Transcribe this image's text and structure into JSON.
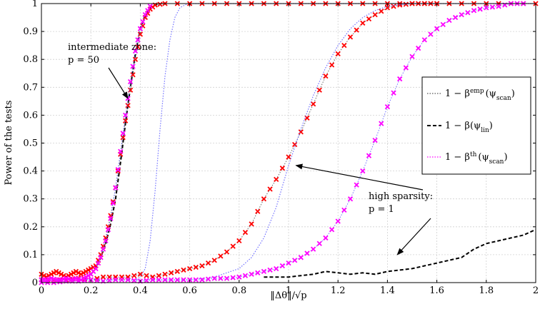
{
  "chart_data": {
    "type": "line",
    "xlabel": "‖Δθ‖/√p",
    "ylabel": "Power of the tests",
    "xlim": [
      0,
      2
    ],
    "ylim": [
      0,
      1
    ],
    "grid": true,
    "x_ticks": [
      "0",
      "0.2",
      "0.4",
      "0.6",
      "0.8",
      "1",
      "1.2",
      "1.4",
      "1.6",
      "1.8",
      "2"
    ],
    "y_ticks": [
      "0",
      "0.1",
      "0.2",
      "0.3",
      "0.4",
      "0.5",
      "0.6",
      "0.7",
      "0.8",
      "0.9",
      "1"
    ],
    "legend_position": "right",
    "legend": [
      {
        "label": "1 − β",
        "sup": "emp",
        "arg": "(ψ",
        "sub": "scan",
        "close": ")",
        "style": "dotted-with-red-x",
        "color": "#555555"
      },
      {
        "label": "1 − β(ψ",
        "sup": "",
        "arg": "",
        "sub": "lin",
        "close": ")",
        "style": "dashed",
        "color": "#000000"
      },
      {
        "label": "1 − β",
        "sup": "th",
        "arg": "(ψ",
        "sub": "scan",
        "close": ")",
        "style": "dotted-with-magenta-x",
        "color": "#ff00ff"
      }
    ],
    "annotations": [
      {
        "lines": [
          "intermediate zone:",
          "p = 50"
        ],
        "arrow_to": [
          0.35,
          0.66
        ]
      },
      {
        "lines": [
          "high sparsity:",
          "p = 1"
        ],
        "arrow_to": [
          1.03,
          0.42
        ]
      },
      {
        "arrow_to": [
          1.44,
          0.1
        ]
      }
    ],
    "colors": {
      "red_x": "#ff0000",
      "magenta_x": "#ff00ff",
      "emp_line": "#666666",
      "th_line": "#7070ff",
      "lin_line": "#000000"
    },
    "series": [
      {
        "key": "th_p50",
        "style": "dotted",
        "color": "#7070ff",
        "x": [
          0,
          0.2,
          0.3,
          0.35,
          0.38,
          0.4,
          0.42,
          0.44,
          0.46,
          0.48,
          0.5,
          0.52,
          0.54,
          0.56,
          0.58,
          0.6,
          2.0
        ],
        "y": [
          0.01,
          0.01,
          0.01,
          0.01,
          0.01,
          0.02,
          0.05,
          0.15,
          0.33,
          0.55,
          0.74,
          0.87,
          0.95,
          0.985,
          0.995,
          1.0,
          1.0
        ]
      },
      {
        "key": "lin_p50",
        "style": "dashed",
        "color": "#000000",
        "x": [
          0.2,
          0.22,
          0.24,
          0.26,
          0.28,
          0.3,
          0.32,
          0.34,
          0.36,
          0.38,
          0.4,
          0.42,
          0.44,
          0.46,
          0.48
        ],
        "y": [
          0.03,
          0.05,
          0.09,
          0.14,
          0.21,
          0.3,
          0.43,
          0.57,
          0.7,
          0.82,
          0.91,
          0.96,
          0.985,
          0.995,
          1.0
        ]
      },
      {
        "key": "lin_p1",
        "style": "dashed",
        "color": "#000000",
        "x": [
          0.9,
          0.95,
          1.0,
          1.05,
          1.1,
          1.15,
          1.2,
          1.25,
          1.3,
          1.35,
          1.4,
          1.45,
          1.5,
          1.55,
          1.6,
          1.65,
          1.7,
          1.75,
          1.8,
          1.85,
          1.9,
          1.95,
          2.0
        ],
        "y": [
          0.02,
          0.02,
          0.02,
          0.025,
          0.03,
          0.04,
          0.035,
          0.03,
          0.035,
          0.03,
          0.04,
          0.045,
          0.05,
          0.06,
          0.07,
          0.08,
          0.09,
          0.12,
          0.14,
          0.15,
          0.16,
          0.17,
          0.19
        ]
      },
      {
        "key": "emp_p50",
        "style": "x-dotted",
        "color": "#ff0000",
        "line_color": "#666666",
        "x": [
          0.0,
          0.02,
          0.04,
          0.06,
          0.08,
          0.1,
          0.12,
          0.14,
          0.16,
          0.18,
          0.2,
          0.22,
          0.24,
          0.26,
          0.28,
          0.3,
          0.32,
          0.34,
          0.36,
          0.38,
          0.4,
          0.42,
          0.44,
          0.46,
          0.5,
          0.6,
          0.7,
          0.8,
          0.9,
          1.0,
          1.1,
          1.2,
          1.3,
          1.4,
          1.5,
          1.6,
          1.7,
          1.8,
          1.9,
          2.0
        ],
        "y": [
          0.03,
          0.02,
          0.03,
          0.04,
          0.03,
          0.02,
          0.03,
          0.04,
          0.03,
          0.04,
          0.05,
          0.06,
          0.1,
          0.16,
          0.24,
          0.34,
          0.46,
          0.58,
          0.69,
          0.8,
          0.89,
          0.95,
          0.98,
          0.995,
          1.0,
          1.0,
          1.0,
          1.0,
          1.0,
          1.0,
          1.0,
          1.0,
          1.0,
          1.0,
          1.0,
          1.0,
          1.0,
          1.0,
          1.0,
          1.0
        ]
      },
      {
        "key": "emp_p1",
        "style": "x-dotted",
        "color": "#ff0000",
        "line_color": "#666666",
        "x": [
          0.0,
          0.05,
          0.1,
          0.15,
          0.2,
          0.25,
          0.3,
          0.35,
          0.4,
          0.45,
          0.5,
          0.55,
          0.6,
          0.65,
          0.7,
          0.75,
          0.8,
          0.85,
          0.9,
          0.95,
          1.0,
          1.05,
          1.1,
          1.15,
          1.2,
          1.25,
          1.3,
          1.35,
          1.4,
          1.45,
          1.5,
          1.55,
          1.6
        ],
        "y": [
          0.01,
          0.01,
          0.01,
          0.015,
          0.01,
          0.02,
          0.02,
          0.02,
          0.03,
          0.02,
          0.03,
          0.04,
          0.05,
          0.06,
          0.08,
          0.11,
          0.15,
          0.21,
          0.3,
          0.37,
          0.45,
          0.54,
          0.64,
          0.74,
          0.82,
          0.88,
          0.93,
          0.96,
          0.985,
          0.995,
          1.0,
          1.0,
          1.0
        ]
      },
      {
        "key": "th_p1",
        "style": "dotted",
        "color": "#7070ff",
        "x": [
          0.0,
          0.5,
          0.6,
          0.7,
          0.8,
          0.85,
          0.9,
          0.95,
          1.0,
          1.05,
          1.1,
          1.15,
          1.2,
          1.25,
          1.3,
          1.35,
          1.4,
          1.45,
          1.5,
          1.55,
          1.6
        ],
        "y": [
          0.01,
          0.01,
          0.01,
          0.02,
          0.05,
          0.09,
          0.16,
          0.27,
          0.42,
          0.55,
          0.67,
          0.77,
          0.85,
          0.91,
          0.95,
          0.975,
          0.99,
          0.996,
          1.0,
          1.0,
          1.0
        ]
      },
      {
        "key": "thm_p1",
        "style": "x-dotted",
        "color": "#ff00ff",
        "line_color": "#7070ff",
        "x": [
          0.0,
          0.05,
          0.1,
          0.15,
          0.2,
          0.25,
          0.3,
          0.35,
          0.4,
          0.45,
          0.5,
          0.55,
          0.6,
          0.65,
          0.7,
          0.75,
          0.8,
          0.85,
          0.9,
          0.95,
          1.0,
          1.05,
          1.1,
          1.15,
          1.2,
          1.25,
          1.3,
          1.35,
          1.4,
          1.45,
          1.5,
          1.55,
          1.6,
          1.65,
          1.7,
          1.75,
          1.8,
          1.85,
          1.9,
          1.95
        ],
        "y": [
          0.0,
          0.0,
          0.005,
          0.005,
          0.01,
          0.005,
          0.01,
          0.01,
          0.005,
          0.01,
          0.01,
          0.01,
          0.01,
          0.01,
          0.015,
          0.015,
          0.02,
          0.03,
          0.04,
          0.05,
          0.07,
          0.09,
          0.12,
          0.16,
          0.22,
          0.3,
          0.4,
          0.51,
          0.63,
          0.73,
          0.81,
          0.87,
          0.91,
          0.94,
          0.96,
          0.975,
          0.985,
          0.99,
          1.0,
          1.0
        ]
      },
      {
        "key": "thm_p50",
        "style": "x-dotted",
        "color": "#ff00ff",
        "line_color": "#7070ff",
        "x": [
          0.0,
          0.02,
          0.04,
          0.06,
          0.08,
          0.1,
          0.12,
          0.14,
          0.16,
          0.18,
          0.2,
          0.22,
          0.24,
          0.26,
          0.28,
          0.3,
          0.32,
          0.34,
          0.36,
          0.38,
          0.4,
          0.42,
          0.44
        ],
        "y": [
          0.01,
          0.01,
          0.015,
          0.01,
          0.01,
          0.015,
          0.01,
          0.015,
          0.01,
          0.02,
          0.03,
          0.05,
          0.09,
          0.15,
          0.23,
          0.34,
          0.47,
          0.6,
          0.72,
          0.83,
          0.91,
          0.96,
          0.99
        ]
      }
    ]
  }
}
